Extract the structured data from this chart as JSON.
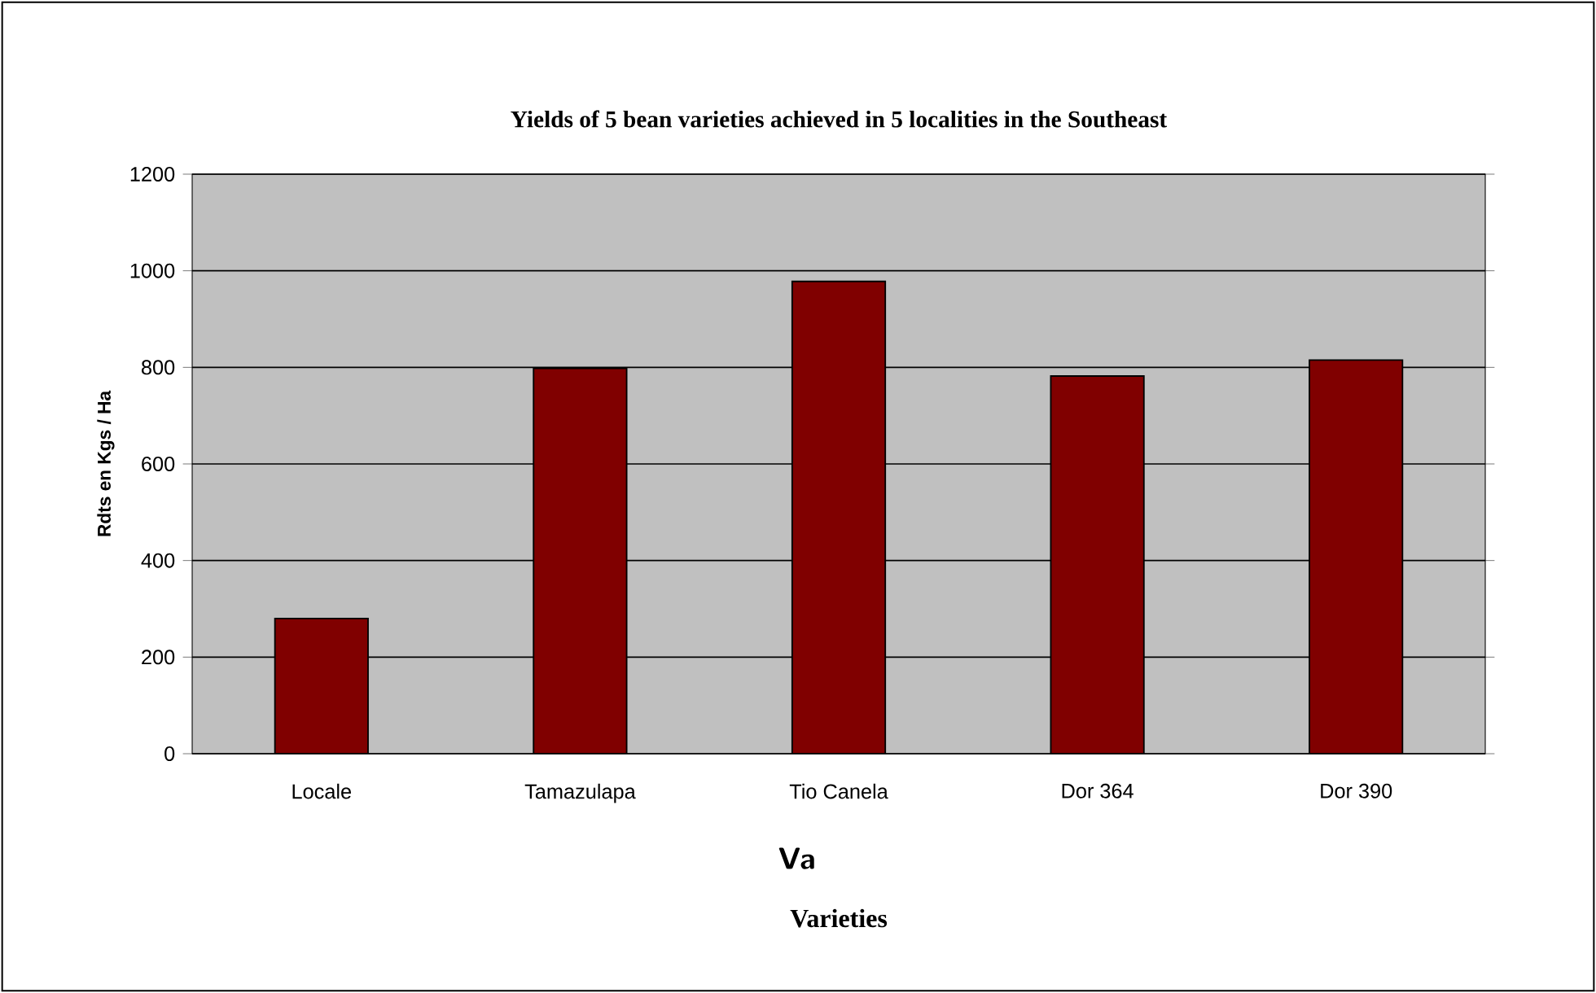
{
  "chart_data": {
    "type": "bar",
    "title": "Yields of 5 bean varieties achieved in 5 localities in the Southeast",
    "xlabel": "Varieties",
    "ylabel": "Rdts en Kgs / Ha",
    "annotations": [
      "Va"
    ],
    "categories": [
      "Locale",
      "Tamazulapa",
      "Tio Canela",
      "Dor 364",
      "Dor 390"
    ],
    "values": [
      280,
      798,
      978,
      782,
      815
    ],
    "color": "#800000",
    "ylim": [
      0,
      1200
    ],
    "yticks": [
      0,
      200,
      400,
      600,
      800,
      1000,
      1200
    ],
    "grid": "y"
  }
}
